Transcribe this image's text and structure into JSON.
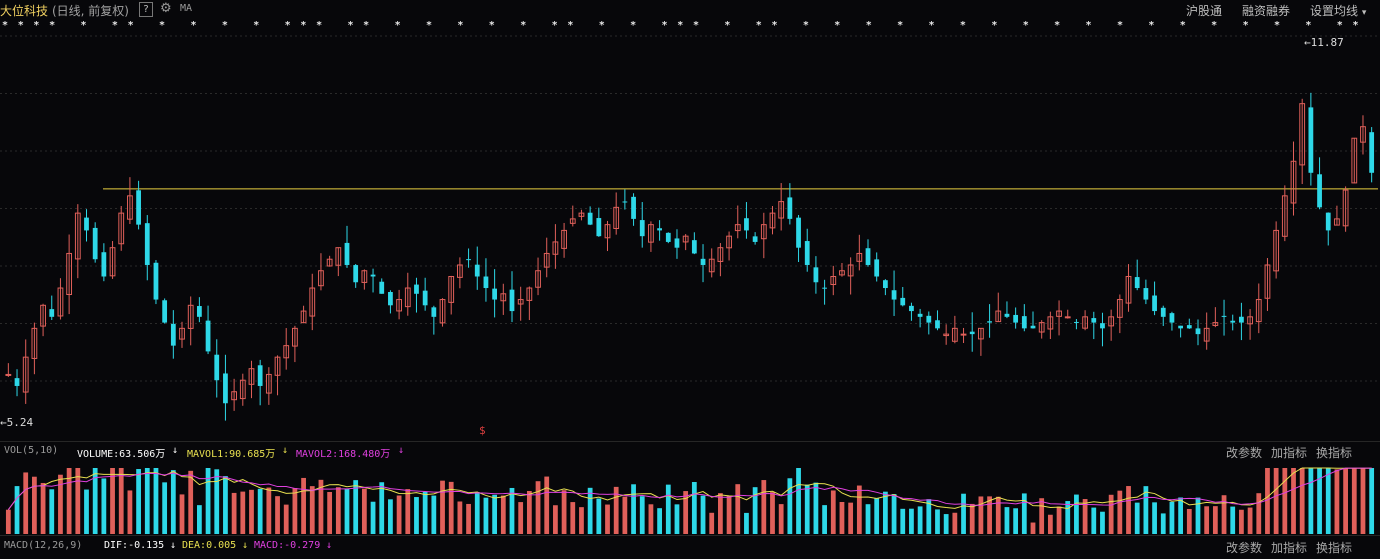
{
  "header": {
    "stock_name": "大位科技",
    "period_info": "(日线, 前复权)",
    "help_label": "?",
    "indicator_label": "MA",
    "links": [
      "沪股通",
      "融资融券",
      "设置均线"
    ]
  },
  "main_chart": {
    "high_label": "11.87",
    "low_label": "5.24",
    "ref_line_price": 9.32,
    "marker_symbol": "$",
    "top_marks": "**** * ** * * * * *** ** * * * * * ** * * *** * ** * * * * * * * * * * * * * * * * * **"
  },
  "volume_panel": {
    "name": "VOL(5,10)",
    "volume": "VOLUME:63.506万",
    "mavol1": "MAVOL1:90.685万",
    "mavol2": "MAVOL2:168.480万",
    "buttons": [
      "改参数",
      "加指标",
      "换指标"
    ]
  },
  "macd_panel": {
    "name": "MACD(12,26,9)",
    "dif": "DIF:-0.135",
    "dea": "DEA:0.005",
    "macd": "MACD:-0.279",
    "buttons": [
      "改参数",
      "加指标",
      "换指标"
    ]
  },
  "colors": {
    "up": "#e0605a",
    "down": "#2ed8e8",
    "ref_line": "#e8d040",
    "mavol1": "#e8e050",
    "mavol2": "#e040e0",
    "arrow": "#e8e8e8"
  },
  "chart_data": {
    "type": "candlestick",
    "y_high": 11.87,
    "y_low": 5.24,
    "closes": [
      6.1,
      5.9,
      6.4,
      6.9,
      7.3,
      7.1,
      7.6,
      8.2,
      8.9,
      8.6,
      8.1,
      7.8,
      8.3,
      8.9,
      9.2,
      8.7,
      8.0,
      7.4,
      7.0,
      6.6,
      6.9,
      7.3,
      7.1,
      6.5,
      6.0,
      5.6,
      5.8,
      6.0,
      6.2,
      5.9,
      6.1,
      6.4,
      6.6,
      6.9,
      7.2,
      7.6,
      7.9,
      8.1,
      8.3,
      8.0,
      7.7,
      7.9,
      7.8,
      7.5,
      7.3,
      7.4,
      7.6,
      7.5,
      7.3,
      7.1,
      7.4,
      7.8,
      8.0,
      8.1,
      7.8,
      7.6,
      7.4,
      7.5,
      7.2,
      7.4,
      7.6,
      7.9,
      8.2,
      8.4,
      8.6,
      8.8,
      8.9,
      8.7,
      8.5,
      8.7,
      9.0,
      9.1,
      8.8,
      8.5,
      8.7,
      8.6,
      8.4,
      8.3,
      8.5,
      8.2,
      8.0,
      8.1,
      8.3,
      8.5,
      8.7,
      8.6,
      8.4,
      8.7,
      8.9,
      9.1,
      8.8,
      8.3,
      8.0,
      7.7,
      7.6,
      7.8,
      7.9,
      8.0,
      8.2,
      8.0,
      7.8,
      7.6,
      7.4,
      7.3,
      7.2,
      7.1,
      7.0,
      6.9,
      6.8,
      6.9,
      6.8,
      6.8,
      6.9,
      7.0,
      7.2,
      7.1,
      7.0,
      6.9,
      6.9,
      7.0,
      7.1,
      7.2,
      7.1,
      7.0,
      7.1,
      7.0,
      6.9,
      7.1,
      7.4,
      7.8,
      7.6,
      7.4,
      7.2,
      7.1,
      7.0,
      6.9,
      6.9,
      6.8,
      6.9,
      7.0,
      7.1,
      7.0,
      7.0,
      7.1,
      7.4,
      8.0,
      8.6,
      9.2,
      9.8,
      10.8,
      9.6,
      9.0,
      8.6,
      8.8,
      9.3,
      10.2,
      10.4,
      9.6
    ]
  }
}
